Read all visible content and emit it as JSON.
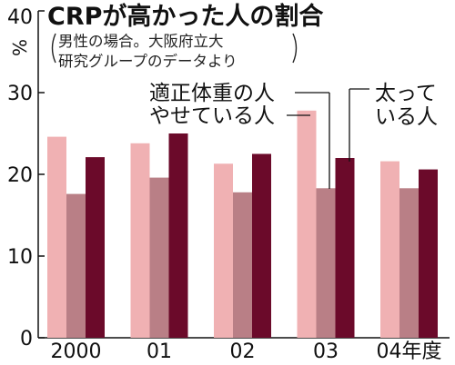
{
  "title": "CRPが高かった人の割合",
  "subtitle_lines": [
    "男性の場合。大阪府立大",
    "研究グループのデータより"
  ],
  "chart_data": {
    "type": "bar",
    "title": "CRPが高かった人の割合",
    "subtitle": "男性の場合。大阪府立大研究グループのデータより",
    "categories": [
      "2000",
      "01",
      "02",
      "03",
      "04年度"
    ],
    "series": [
      {
        "name": "適正体重の人",
        "values": [
          24.6,
          23.8,
          21.3,
          27.8,
          21.6
        ],
        "color": "#f0b1b3"
      },
      {
        "name": "やせている人",
        "values": [
          17.6,
          19.6,
          17.8,
          18.3,
          18.3
        ],
        "color": "#b97f86"
      },
      {
        "name": "太っている人",
        "values": [
          22.1,
          25.0,
          22.5,
          22.0,
          20.6
        ],
        "color": "#6b0a2a"
      }
    ],
    "ylabel": "%",
    "ylim": [
      0,
      40
    ],
    "yticks": [
      0,
      10,
      20,
      30,
      40
    ],
    "ytick_labels": [
      "0",
      "10",
      "20",
      "30",
      "40"
    ],
    "grid": false,
    "legend_labels": {
      "normal": "適正体重の人",
      "thin": "やせている人",
      "fat_line1": "太って",
      "fat_line2": "いる人"
    }
  }
}
